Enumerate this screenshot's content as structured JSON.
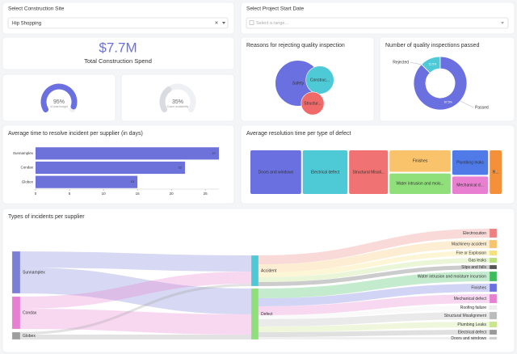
{
  "filters": [
    {
      "label": "Select Construction Site",
      "value": "Hip Shopping"
    },
    {
      "label": "Select Project Start Date",
      "placeholder": "Select a range..."
    }
  ],
  "kpi": {
    "value": "$7.7M",
    "label": "Total Construction Spend"
  },
  "chart_data": [
    {
      "type": "gauge",
      "values": [
        95
      ],
      "value_labels": [
        "95%"
      ],
      "subtitle": "of total budget",
      "ylim": [
        0,
        100
      ],
      "color": "#6a70e0"
    },
    {
      "type": "gauge",
      "values": [
        35
      ],
      "value_labels": [
        "35%"
      ],
      "subtitle": "Crane availability",
      "ylim": [
        0,
        100
      ],
      "color": "#d9dbe0"
    },
    {
      "type": "bubble",
      "title": "Reasons for rejecting quality inspection",
      "categories": [
        "Safety",
        "Construc...",
        "Structur..."
      ],
      "values": [
        8,
        3,
        2
      ],
      "colors": [
        "#6a70e0",
        "#4ec9d6",
        "#f06a6a"
      ]
    },
    {
      "type": "donut",
      "title": "Number of quality inspections passed",
      "categories": [
        "Rejected",
        "Passed"
      ],
      "values": [
        12.5,
        87.5
      ],
      "value_labels": [
        "12.5%",
        "87.5%"
      ],
      "colors": [
        "#4ec9d6",
        "#6a70e0"
      ]
    },
    {
      "type": "hbar",
      "title": "Average time to resolve incident per supplier (in days)",
      "categories": [
        "Sunnamplex",
        "Condax",
        "Globex"
      ],
      "values": [
        27,
        22,
        15
      ],
      "color": "#6c72d9",
      "xlim": [
        0,
        27
      ],
      "xticks": [
        0,
        5,
        10,
        15,
        20,
        25
      ]
    },
    {
      "type": "treemap",
      "title": "Average resolution time per type of defect",
      "categories": [
        "Doors and windows",
        "Electrical defect",
        "Structural Misali...",
        "Finishes",
        "Water intrusion and mois...",
        "Plumbing leaks",
        "Mechanical d...",
        "R..."
      ],
      "values": [
        34,
        30,
        26,
        21,
        20,
        14,
        10,
        8
      ],
      "colors": [
        "#6a70e0",
        "#4ec9d6",
        "#f07272",
        "#f9c36b",
        "#8fe07a",
        "#4f7ae8",
        "#e87fd0",
        "#f5903a"
      ]
    },
    {
      "type": "sankey",
      "title": "Types of incidents per supplier",
      "nodes": [
        {
          "name": "Sunnamplex",
          "color": "#7b7fd6"
        },
        {
          "name": "Condax",
          "color": "#e87fd0"
        },
        {
          "name": "Globex",
          "color": "#9e9e9e"
        },
        {
          "name": "Accident",
          "color": "#4ec9d6"
        },
        {
          "name": "Defect",
          "color": "#8fe07a"
        },
        {
          "name": "Electrocution",
          "color": "#f08080"
        },
        {
          "name": "Machinery accident",
          "color": "#f9c36b"
        },
        {
          "name": "Fire or Explosion",
          "color": "#f5e27a"
        },
        {
          "name": "Gas leaks",
          "color": "#b8e07a"
        },
        {
          "name": "Slips and falls",
          "color": "#555555"
        },
        {
          "name": "Water intrusion and moisture incursion",
          "color": "#3dbd5a"
        },
        {
          "name": "Finishes",
          "color": "#6a70e0"
        },
        {
          "name": "Mechanical defect",
          "color": "#e87fd0"
        },
        {
          "name": "Roofing failure",
          "color": "#eeeeee"
        },
        {
          "name": "Structural Misalignment",
          "color": "#bbbbbb"
        },
        {
          "name": "Plumbing Leaks",
          "color": "#c8e68a"
        },
        {
          "name": "Electrical defect",
          "color": "#999999"
        },
        {
          "name": "Doors and windows",
          "color": "#cccccc"
        }
      ],
      "links": [
        {
          "source": "Sunnamplex",
          "target": "Accident",
          "value": 20
        },
        {
          "source": "Sunnamplex",
          "target": "Defect",
          "value": 32
        },
        {
          "source": "Condax",
          "target": "Accident",
          "value": 15
        },
        {
          "source": "Condax",
          "target": "Defect",
          "value": 25
        },
        {
          "source": "Globex",
          "target": "Accident",
          "value": 3
        },
        {
          "source": "Globex",
          "target": "Defect",
          "value": 6
        },
        {
          "source": "Accident",
          "target": "Electrocution",
          "value": 11
        },
        {
          "source": "Accident",
          "target": "Machinery accident",
          "value": 10
        },
        {
          "source": "Accident",
          "target": "Fire or Explosion",
          "value": 6
        },
        {
          "source": "Accident",
          "target": "Gas leaks",
          "value": 6
        },
        {
          "source": "Accident",
          "target": "Slips and falls",
          "value": 5
        },
        {
          "source": "Defect",
          "target": "Water intrusion and moisture incursion",
          "value": 12
        },
        {
          "source": "Defect",
          "target": "Finishes",
          "value": 10
        },
        {
          "source": "Defect",
          "target": "Mechanical defect",
          "value": 11
        },
        {
          "source": "Defect",
          "target": "Roofing failure",
          "value": 5
        },
        {
          "source": "Defect",
          "target": "Structural Misalignment",
          "value": 9
        },
        {
          "source": "Defect",
          "target": "Plumbing Leaks",
          "value": 7
        },
        {
          "source": "Defect",
          "target": "Electrical defect",
          "value": 6
        },
        {
          "source": "Defect",
          "target": "Doors and windows",
          "value": 3
        }
      ]
    }
  ]
}
